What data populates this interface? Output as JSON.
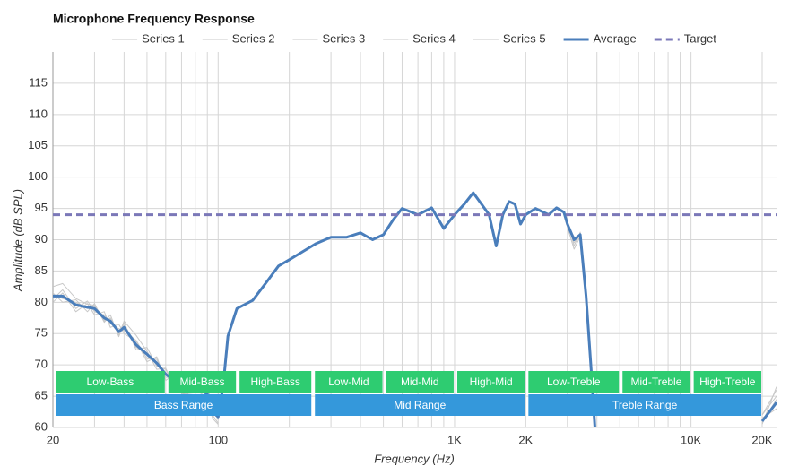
{
  "chart_data": {
    "type": "line",
    "title": "Microphone Frequency Response",
    "x_label": "Frequency (Hz)",
    "y_label": "Amplitude (dB SPL)",
    "log_x": true,
    "grid": true,
    "xlim": [
      20,
      23000
    ],
    "ylim": [
      60,
      120
    ],
    "yticks": [
      60,
      65,
      70,
      75,
      80,
      85,
      90,
      95,
      100,
      105,
      110,
      115
    ],
    "xticks": [
      20,
      100,
      {
        "value": 1000,
        "label": "1K"
      },
      {
        "value": 2000,
        "label": "2K"
      },
      {
        "value": 10000,
        "label": "10K"
      },
      {
        "value": 20000,
        "label": "20K"
      }
    ],
    "xgrid_minor": [
      30,
      40,
      50,
      60,
      70,
      80,
      90,
      200,
      300,
      400,
      500,
      600,
      700,
      800,
      900,
      3000,
      4000,
      5000,
      6000,
      7000,
      8000,
      9000
    ],
    "x": [
      20,
      22,
      25,
      28,
      30,
      33,
      35,
      38,
      40,
      45,
      50,
      55,
      60,
      65,
      70,
      80,
      90,
      95,
      100,
      105,
      110,
      120,
      140,
      160,
      180,
      200,
      230,
      260,
      300,
      350,
      400,
      450,
      500,
      550,
      600,
      700,
      800,
      900,
      1000,
      1100,
      1200,
      1300,
      1400,
      1500,
      1600,
      1700,
      1800,
      1900,
      2000,
      2200,
      2500,
      2700,
      2900,
      3000,
      3200,
      3400,
      3600,
      3800,
      4000,
      19000,
      20000,
      23000
    ],
    "series": [
      {
        "name": "Series 1",
        "color": "#c8c8c8",
        "values": [
          82.5,
          83,
          80.6,
          79.7,
          79.5,
          77,
          77.5,
          74.8,
          77,
          74.7,
          72.2,
          69.3,
          69.5,
          66.5,
          65.9,
          64.7,
          64.3,
          61.9,
          60.7,
          null,
          null,
          null,
          null,
          null,
          null,
          null,
          null,
          null,
          null,
          null,
          null,
          null,
          null,
          null,
          null,
          null,
          null,
          null,
          null,
          null,
          null,
          null,
          null,
          null,
          null,
          null,
          null,
          null,
          null,
          null,
          null,
          null,
          null,
          92,
          88.5,
          90.5,
          80,
          67,
          54,
          null,
          62,
          65
        ]
      },
      {
        "name": "Series 2",
        "color": "#c8c8c8",
        "values": [
          80,
          81.5,
          78.5,
          79.8,
          78,
          78.5,
          76,
          76.5,
          75,
          73.8,
          70.5,
          71.3,
          67.5,
          68.5,
          65.4,
          65.2,
          63.8,
          61.4,
          60.5,
          null,
          null,
          null,
          null,
          null,
          null,
          null,
          null,
          null,
          null,
          null,
          null,
          null,
          null,
          null,
          null,
          null,
          null,
          null,
          null,
          null,
          null,
          null,
          null,
          null,
          null,
          null,
          null,
          null,
          null,
          null,
          null,
          null,
          null,
          93,
          89,
          91.2,
          82,
          69,
          56,
          null,
          60.5,
          66.5
        ]
      },
      {
        "name": "Series 3",
        "color": "#c8c8c8",
        "values": [
          81.5,
          80,
          80.4,
          78.5,
          79.8,
          76.8,
          78,
          74.5,
          76.8,
          72.4,
          72.8,
          69.8,
          69.3,
          66.8,
          67.2,
          67.5,
          66.3,
          63.4,
          62.5,
          null,
          null,
          null,
          null,
          null,
          null,
          null,
          null,
          null,
          null,
          null,
          null,
          null,
          null,
          null,
          null,
          null,
          null,
          null,
          null,
          null,
          null,
          null,
          null,
          null,
          null,
          null,
          null,
          null,
          null,
          null,
          null,
          null,
          null,
          92.2,
          90.5,
          90,
          80.5,
          68,
          54.5,
          null,
          61.5,
          63
        ]
      },
      {
        "name": "Series 4",
        "color": "#c8c8c8",
        "values": [
          80.5,
          82,
          79,
          80.2,
          78.5,
          78,
          76.6,
          75.8,
          75.5,
          73.9,
          71,
          70.9,
          68,
          68,
          66,
          66,
          64.8,
          62.9,
          61.2,
          null,
          null,
          null,
          null,
          null,
          null,
          null,
          null,
          null,
          null,
          null,
          null,
          null,
          null,
          null,
          null,
          null,
          null,
          null,
          null,
          null,
          null,
          null,
          null,
          null,
          null,
          null,
          null,
          null,
          null,
          null,
          null,
          null,
          null,
          92.8,
          89.5,
          91,
          81.5,
          69.5,
          55.5,
          null,
          60.8,
          64.5
        ]
      },
      {
        "name": "Series 5",
        "color": "#c8c8c8",
        "values": [
          81.2,
          80.6,
          80,
          79,
          79.4,
          77.2,
          77.4,
          75.1,
          76.3,
          72.8,
          71.9,
          70,
          68.8,
          67.2,
          66.8,
          67,
          65.6,
          62,
          61.9,
          null,
          null,
          null,
          null,
          null,
          null,
          null,
          null,
          null,
          null,
          null,
          null,
          null,
          null,
          null,
          null,
          null,
          null,
          null,
          null,
          null,
          null,
          null,
          null,
          null,
          null,
          null,
          null,
          null,
          null,
          null,
          null,
          null,
          null,
          92.4,
          90.2,
          90.6,
          81.2,
          67.5,
          55,
          null,
          62,
          66
        ]
      },
      {
        "name": "Average",
        "color": "#4a7ebb",
        "width": 3,
        "values": [
          81,
          81,
          79.6,
          79.2,
          79,
          77.5,
          77,
          75.3,
          76,
          73.2,
          71.7,
          70.3,
          68.5,
          67.5,
          66.4,
          66.7,
          65.3,
          62.4,
          61.7,
          66.7,
          74.6,
          79,
          80.3,
          83.2,
          85.8,
          86.8,
          88.2,
          89.4,
          90.4,
          90.4,
          91.1,
          90,
          90.8,
          93.2,
          95,
          94,
          95.1,
          91.8,
          94,
          95.7,
          97.5,
          95.7,
          94,
          89,
          94,
          96.1,
          95.7,
          92.5,
          94,
          95,
          94,
          95.1,
          94.4,
          92.5,
          90,
          90.8,
          81,
          68.2,
          55,
          null,
          61,
          64
        ]
      }
    ],
    "target": {
      "name": "Target",
      "color": "#7b78b8",
      "value": 94
    },
    "bands": [
      {
        "label": "Low-Bass",
        "x": [
          20,
          60
        ]
      },
      {
        "label": "Mid-Bass",
        "x": [
          60,
          120
        ]
      },
      {
        "label": "High-Bass",
        "x": [
          120,
          250
        ]
      },
      {
        "label": "Low-Mid",
        "x": [
          250,
          500
        ]
      },
      {
        "label": "Mid-Mid",
        "x": [
          500,
          1000
        ]
      },
      {
        "label": "High-Mid",
        "x": [
          1000,
          2000
        ]
      },
      {
        "label": "Low-Treble",
        "x": [
          2000,
          5000
        ]
      },
      {
        "label": "Mid-Treble",
        "x": [
          5000,
          10000
        ]
      },
      {
        "label": "High-Treble",
        "x": [
          10000,
          20000
        ]
      }
    ],
    "band_color": "#2ecc71",
    "ranges": [
      {
        "label": "Bass Range",
        "x": [
          20,
          250
        ]
      },
      {
        "label": "Mid Range",
        "x": [
          250,
          2000
        ]
      },
      {
        "label": "Treble Range",
        "x": [
          2000,
          20000
        ]
      }
    ],
    "range_color": "#3498db"
  }
}
